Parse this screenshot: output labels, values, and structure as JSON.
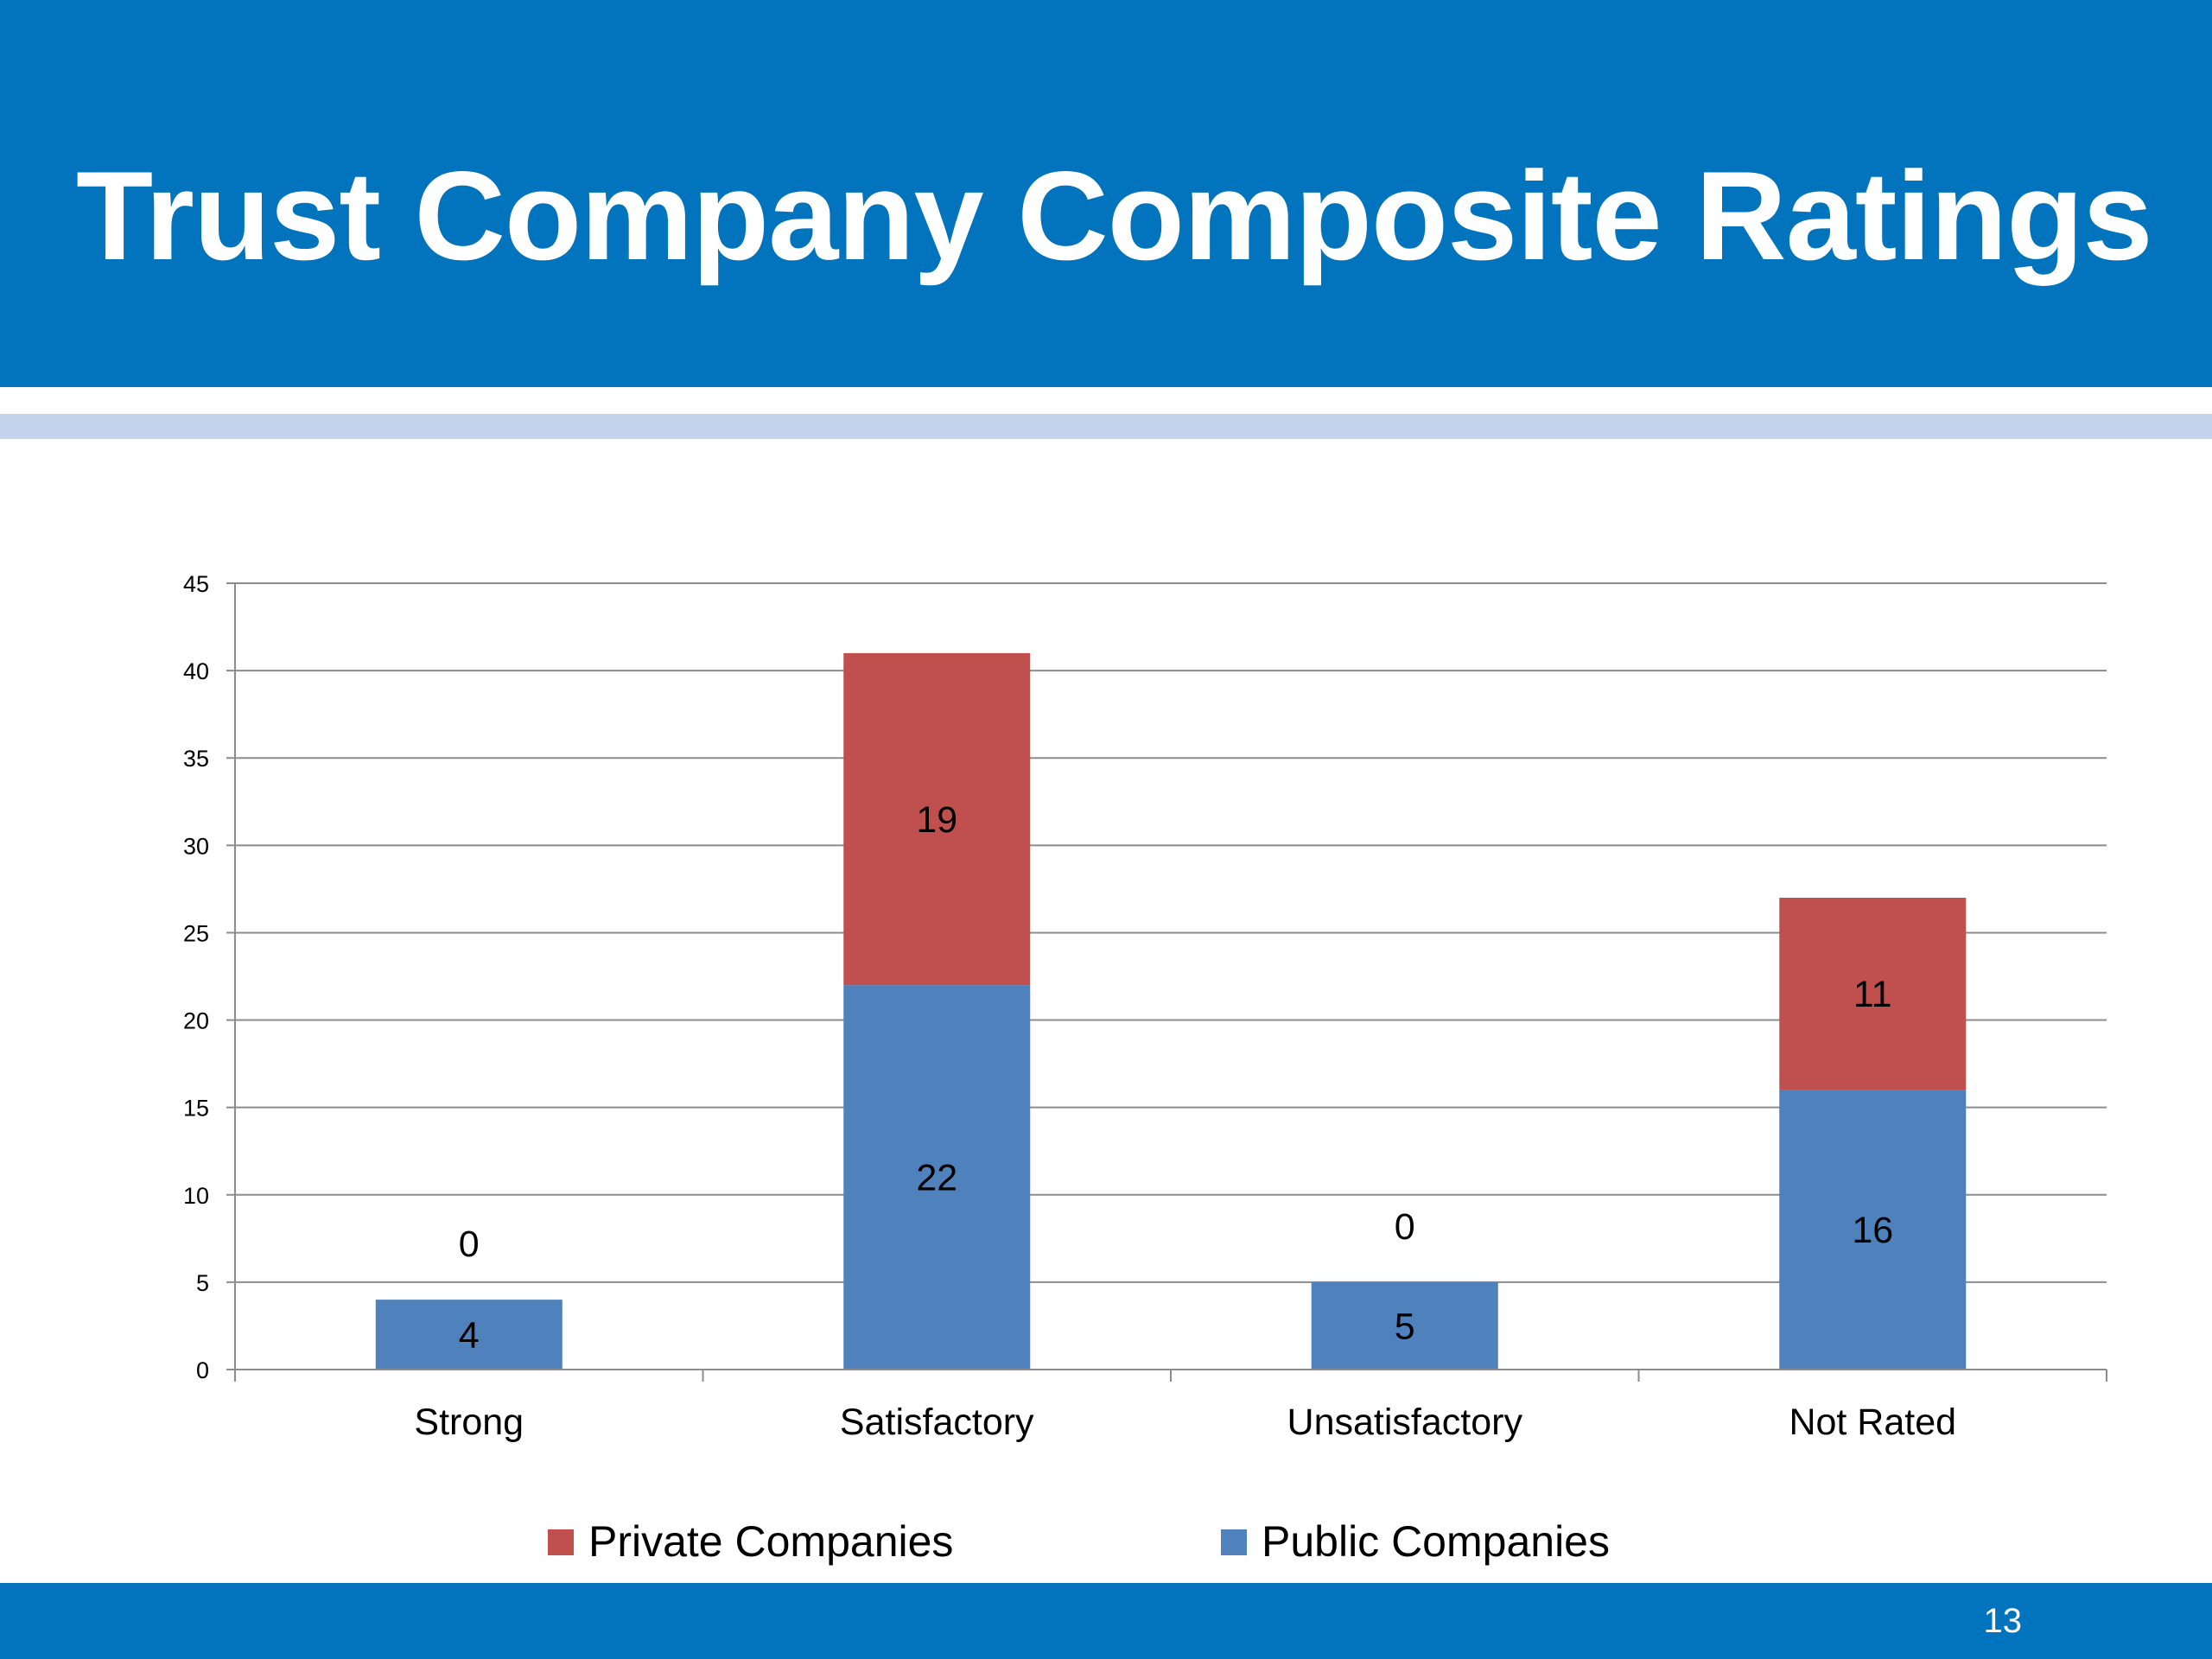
{
  "slide": {
    "title": "Trust Company Composite Ratings",
    "page_number": "13",
    "colors": {
      "header": "#0174bd",
      "rule": "#c5d4ed"
    }
  },
  "chart_data": {
    "type": "bar",
    "stacked": true,
    "categories": [
      "Strong",
      "Satisfactory",
      "Unsatisfactory",
      "Not Rated"
    ],
    "series": [
      {
        "name": "Public Companies",
        "values": [
          4,
          22,
          5,
          16
        ],
        "color": "#4f81bd"
      },
      {
        "name": "Private Companies",
        "values": [
          0,
          19,
          0,
          11
        ],
        "color": "#c0504d"
      }
    ],
    "ylim": [
      0,
      45
    ],
    "yticks": [
      0,
      5,
      10,
      15,
      20,
      25,
      30,
      35,
      40,
      45
    ],
    "grid": true,
    "legend": "bottom",
    "legend_order": [
      "Private Companies",
      "Public Companies"
    ]
  }
}
